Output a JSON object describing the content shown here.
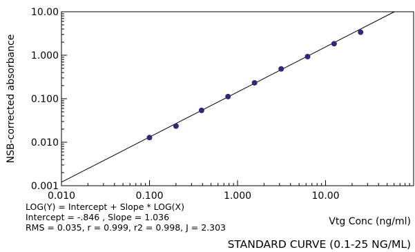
{
  "chart_data": {
    "type": "scatter",
    "title": "STANDARD CURVE (0.1-25 NG/ML)",
    "xlabel": "Vtg Conc (ng/ml)",
    "ylabel": "NSB-corrected absorbance",
    "xscale": "log",
    "yscale": "log",
    "xlim": [
      0.01,
      100
    ],
    "ylim": [
      0.001,
      10
    ],
    "x_ticks": [
      "0.010",
      "0.100",
      "1.000",
      "10.00"
    ],
    "y_ticks": [
      "10.00",
      "1.000",
      "0.100",
      "0.010",
      "0.001"
    ],
    "grid": false,
    "marker_color": "#2e2a7a",
    "line_color": "#000000",
    "series": [
      {
        "x": [
          0.1,
          0.2,
          0.39,
          0.78,
          1.56,
          3.13,
          6.25,
          12.5,
          25
        ],
        "y": [
          0.0128,
          0.0235,
          0.054,
          0.112,
          0.232,
          0.485,
          0.93,
          1.84,
          3.38
        ]
      }
    ],
    "fit": {
      "intercept": -0.846,
      "slope": 1.036
    },
    "equation_lines": [
      "LOG(Y) = Intercept + Slope * LOG(X)",
      "Intercept = -.846 , Slope = 1.036",
      "RMS = 0.035, r = 0.999, r2 = 0.998, J = 2.303"
    ]
  }
}
